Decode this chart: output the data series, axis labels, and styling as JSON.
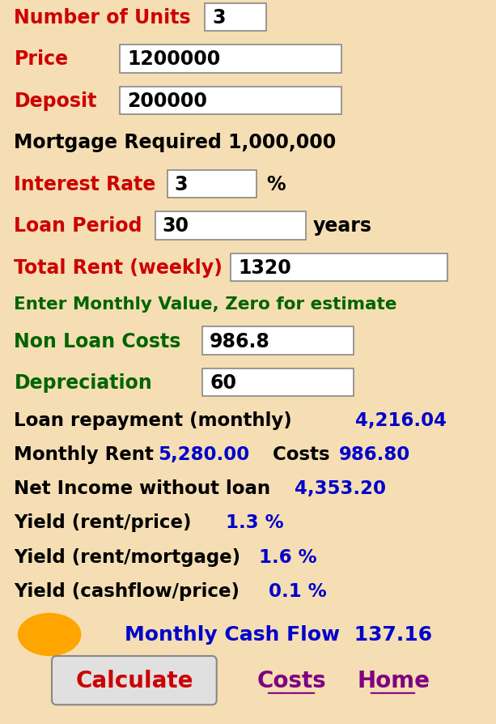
{
  "bg_color": "#F5DEB3",
  "rows": [
    {
      "label": "Number of Units",
      "label_color": "#CC0000",
      "value": "3"
    },
    {
      "label": "Price",
      "label_color": "#CC0000",
      "value": "1200000"
    },
    {
      "label": "Deposit",
      "label_color": "#CC0000",
      "value": "200000"
    },
    {
      "label": "Mortgage Required 1,000,000",
      "label_color": "#000000",
      "value": ""
    },
    {
      "label": "Interest Rate",
      "label_color": "#CC0000",
      "value": "3",
      "suffix": "%"
    },
    {
      "label": "Loan Period",
      "label_color": "#CC0000",
      "value": "30",
      "suffix": "years"
    },
    {
      "label": "Total Rent (weekly)",
      "label_color": "#CC0000",
      "value": "1320"
    },
    {
      "label": "Enter Monthly Value, Zero for estimate",
      "label_color": "#006400",
      "value": ""
    },
    {
      "label": "Non Loan Costs",
      "label_color": "#006400",
      "value": "986.8"
    },
    {
      "label": "Depreciation",
      "label_color": "#006400",
      "value": "60"
    }
  ],
  "results": [
    {
      "text": "Loan repayment (monthly) ",
      "value": "4,216.04"
    },
    {
      "text": "Monthly Rent ",
      "value": "5,280.00",
      "extra_text": " Costs ",
      "extra_value": "986.80"
    },
    {
      "text": "Net Income without loan ",
      "value": "4,353.20"
    },
    {
      "text": "Yield (rent/price) ",
      "value": "1.3 %"
    },
    {
      "text": "Yield (rent/mortgage) ",
      "value": "1.6 %"
    },
    {
      "text": "Yield (cashflow/price) ",
      "value": "0.1 %"
    }
  ],
  "cashflow_label": "Monthly Cash Flow  137.16",
  "cashflow_color": "#0000CC",
  "circle_color": "#FFA500",
  "btn_calculate_text": "Calculate",
  "btn_calculate_color": "#CC0000",
  "btn_costs_text": "Costs",
  "btn_costs_color": "#800080",
  "btn_home_text": "Home",
  "btn_home_color": "#800080",
  "value_color": "#0000CC",
  "black": "#000000",
  "green": "#006400"
}
